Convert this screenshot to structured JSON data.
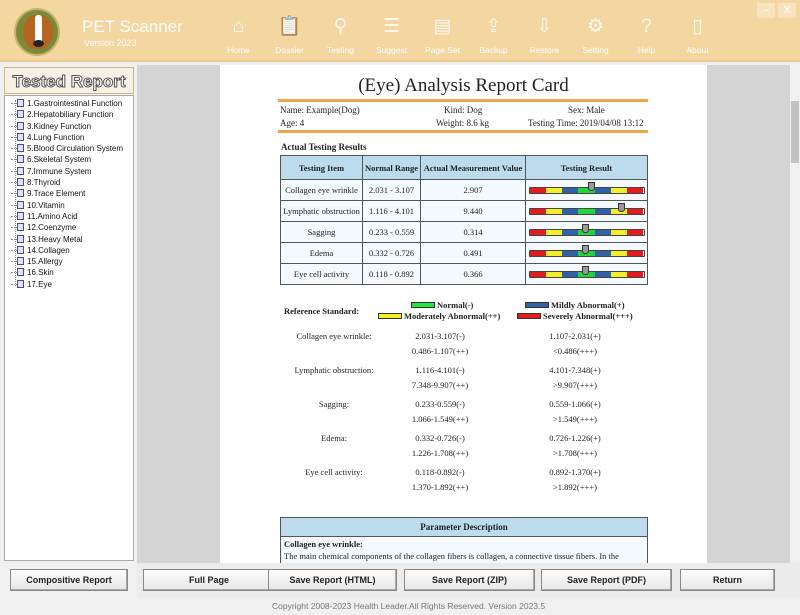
{
  "app": {
    "title": "PET Scanner",
    "version": "Version 2023"
  },
  "nav": [
    {
      "label": "Home",
      "icon": "home-icon",
      "glyph": "⌂"
    },
    {
      "label": "Dossier",
      "icon": "clipboard-icon",
      "glyph": "📋"
    },
    {
      "label": "Testing",
      "icon": "magnifier-icon",
      "glyph": "⚲"
    },
    {
      "label": "Suggest",
      "icon": "list-icon",
      "glyph": "☰"
    },
    {
      "label": "Page Set",
      "icon": "page-icon",
      "glyph": "▤"
    },
    {
      "label": "Backup",
      "icon": "upload-icon",
      "glyph": "⇪"
    },
    {
      "label": "Restore",
      "icon": "download-icon",
      "glyph": "⇩"
    },
    {
      "label": "Setting",
      "icon": "gear-icon",
      "glyph": "⚙"
    },
    {
      "label": "Help",
      "icon": "help-icon",
      "glyph": "?"
    },
    {
      "label": "About",
      "icon": "book-icon",
      "glyph": "▯"
    }
  ],
  "window": {
    "minimize": "–",
    "close": "X"
  },
  "sidebar": {
    "title": "Tested Report",
    "items": [
      "1.Gastrointestinal Function",
      "2.Hepatobiliary Function",
      "3.Kidney Function",
      "4.Lung Function",
      "5.Blood Circulation System",
      "6.Skeletal System",
      "7.Immune System",
      "8.Thyroid",
      "9.Trace Element",
      "10.Vitamin",
      "11.Amino Acid",
      "12.Coenzyme",
      "13.Heavy Metal",
      "14.Collagen",
      "15.Allergy",
      "16.Skin",
      "17.Eye"
    ],
    "button": "Compositive Report"
  },
  "report": {
    "title": "(Eye) Analysis Report Card",
    "name": "Name: Example(Dog)",
    "kind": "Kind: Dog",
    "sex": "Sex: Male",
    "age": "Age: 4",
    "weight": "Weight: 8.6 kg",
    "time": "Testing Time: 2019/04/08 13:12",
    "section": "Actual Testing Results",
    "headers": [
      "Testing Item",
      "Normal Range",
      "Actual Measurement Value",
      "Testing Result"
    ],
    "rows": [
      {
        "item": "Collagen eye wrinkle",
        "range": "2.031 - 3.107",
        "value": "2.907",
        "level": 3.8
      },
      {
        "item": "Lymphatic obstruction",
        "range": "1.116 - 4.101",
        "value": "9.440",
        "level": 5.6
      },
      {
        "item": "Sagging",
        "range": "0.233 - 0.559",
        "value": "0.314",
        "level": 3.4
      },
      {
        "item": "Edema",
        "range": "0.332 - 0.726",
        "value": "0.491",
        "level": 3.4
      },
      {
        "item": "Eye cell activity",
        "range": "0.118 - 0.892",
        "value": "0.366",
        "level": 3.4
      }
    ],
    "gauge_colors": [
      "#e31b1b",
      "#f5ee2a",
      "#2f62a8",
      "#22d63a",
      "#2f62a8",
      "#f5ee2a",
      "#e31b1b"
    ],
    "legend": {
      "label": "Reference Standard:",
      "normal": "Normal(-)",
      "mild": "Mildly Abnormal(+)",
      "moderate": "Moderately Abnormal(++)",
      "severe": "Severely Abnormal(+++)",
      "colors": {
        "normal": "#22e83a",
        "mild": "#2f62a8",
        "moderate": "#f5ee2a",
        "severe": "#e31b1b"
      }
    },
    "reference": [
      {
        "name": "Collagen eye wrinkle:",
        "a": "2.031-3.107(-)",
        "b": "1.107-2.031(+)",
        "c": "0.486-1.107(++)",
        "d": "<0.486(+++)"
      },
      {
        "name": "Lymphatic obstruction:",
        "a": "1.116-4.101(-)",
        "b": "4.101-7.348(+)",
        "c": "7.348-9.907(++)",
        "d": ">9.907(+++)"
      },
      {
        "name": "Sagging:",
        "a": "0.233-0.559(-)",
        "b": "0.559-1.066(+)",
        "c": "1.066-1.549(++)",
        "d": ">1.549(+++)"
      },
      {
        "name": "Edema:",
        "a": "0.332-0.726(-)",
        "b": "0.726-1.226(+)",
        "c": "1.226-1.708(++)",
        "d": ">1.708(+++)"
      },
      {
        "name": "Eye cell activity:",
        "a": "0.118-0.892(-)",
        "b": "0.892-1.370(+)",
        "c": "1.370-1.892(++)",
        "d": ">1.892(+++)"
      }
    ],
    "param": {
      "header": "Parameter Description",
      "title": "Collagen eye wrinkle:",
      "text": "The main chemical components of the collagen fibers is collagen, a connective tissue fibers. In the"
    }
  },
  "buttons": {
    "full": "Full Page",
    "html": "Save Report (HTML)",
    "zip": "Save Report (ZIP)",
    "pdf": "Save Report (PDF)",
    "ret": "Return"
  },
  "footer": "Copyright 2008-2023 Health Leader.All Rights Reserved. Version 2023.5"
}
